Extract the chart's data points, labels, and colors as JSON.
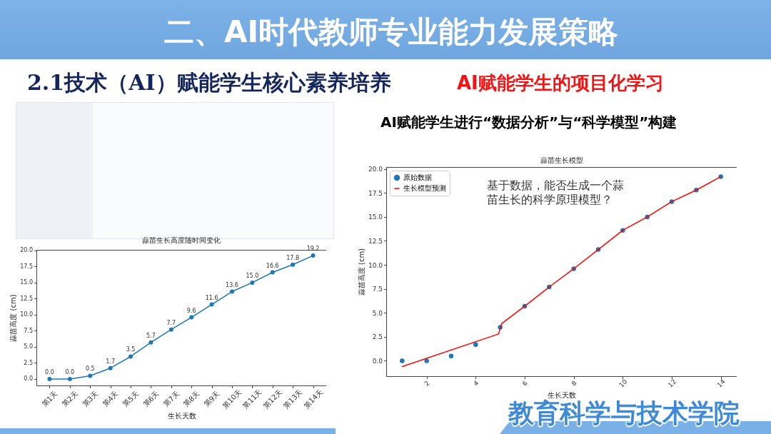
{
  "chart_data": [
    {
      "type": "other",
      "title": "二、AI时代教师专业能力发展策略",
      "subtitle": "2.1技术（AI）赋能学生核心素养培养",
      "annotations": [
        "AI赋能学生的项目化学习",
        "AI赋能学生进行“数据分析”与“科学模型”构建",
        "教育科学与技术学院"
      ]
    },
    {
      "type": "line",
      "title": "蒜苗生长高度随时间变化",
      "xlabel": "生长天数",
      "ylabel": "蒜苗高度 (cm)",
      "categories": [
        "第1天",
        "第2天",
        "第3天",
        "第4天",
        "第5天",
        "第6天",
        "第7天",
        "第8天",
        "第9天",
        "第10天",
        "第11天",
        "第12天",
        "第13天",
        "第14天"
      ],
      "values": [
        0,
        0,
        0.5,
        1.7,
        3.5,
        5.7,
        7.7,
        9.6,
        11.6,
        13.6,
        15.0,
        16.6,
        17.8,
        19.2
      ],
      "value_labels": [
        "0.0",
        "0.0",
        "0.5",
        "1.7",
        "3.5",
        "5.7",
        "7.7",
        "9.6",
        "11.6",
        "13.6",
        "15.0",
        "16.6",
        "17.8",
        "19.2"
      ],
      "color": "#1f77b4",
      "marker": "circle",
      "ylim": [
        -1.0,
        20.1
      ],
      "yticks": [
        {
          "value": 0,
          "label": "0.0"
        },
        2.5,
        {
          "value": 5,
          "label": "5.0"
        },
        7.5,
        {
          "value": 10,
          "label": "10.0"
        },
        12.5,
        {
          "value": 15,
          "label": "15.0"
        },
        17.5,
        {
          "value": 20,
          "label": "20.0"
        }
      ]
    },
    {
      "type": "scatter",
      "title": "蒜苗生长模型",
      "xlabel": "生长天数",
      "ylabel": "蒜苗高度 (cm)",
      "series": [
        {
          "name": "原始数据",
          "type": "scatter",
          "color": "#1f77b4",
          "x": [
            1,
            2,
            3,
            4,
            5,
            6,
            7,
            8,
            9,
            10,
            11,
            12,
            13,
            14
          ],
          "values": [
            0,
            0,
            0.5,
            1.7,
            3.5,
            5.7,
            7.7,
            9.6,
            11.6,
            13.6,
            15.0,
            16.6,
            17.8,
            19.2
          ]
        },
        {
          "name": "生长模型预测",
          "type": "line",
          "color": "#ff0000",
          "marker": "none",
          "x": [
            1,
            4.93,
            5.07,
            6,
            7,
            8,
            9,
            10,
            11,
            12,
            13,
            14
          ],
          "values": [
            -0.6,
            2.8,
            3.9,
            5.7,
            7.7,
            9.6,
            11.6,
            13.6,
            15.0,
            16.6,
            17.8,
            19.2
          ]
        }
      ],
      "marker": "circle",
      "legend": "top left",
      "xlim": [
        0.35,
        14.65
      ],
      "xticks": [
        2,
        4,
        6,
        8,
        10,
        12,
        14
      ],
      "ylim": [
        -1.6,
        20.2
      ],
      "yticks": [
        {
          "value": 0,
          "label": "0.0"
        },
        2.5,
        {
          "value": 5,
          "label": "5.0"
        },
        7.5,
        {
          "value": 10,
          "label": "10.0"
        },
        12.5,
        {
          "value": 15,
          "label": "15.0"
        },
        17.5,
        {
          "value": 20,
          "label": "20.0"
        }
      ],
      "annotations": [
        "基于数据，能否生成一个蒜苗生长的科学原理模型？"
      ]
    }
  ]
}
